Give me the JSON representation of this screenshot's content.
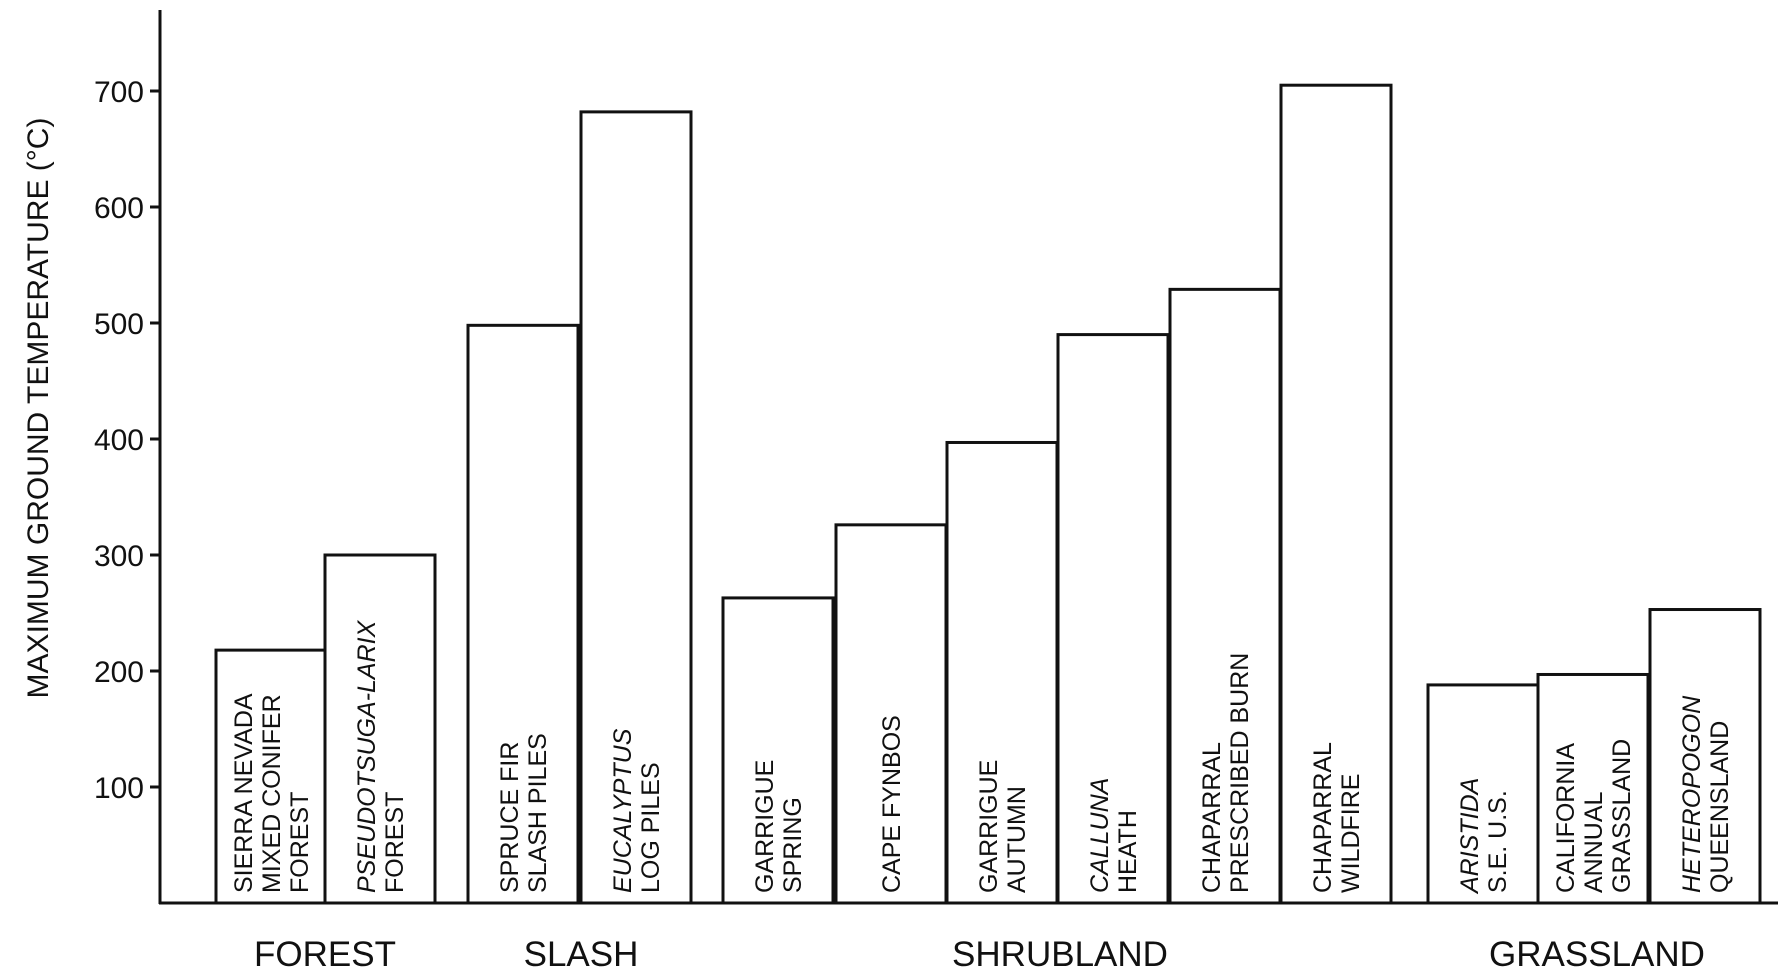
{
  "chart_data": {
    "type": "bar",
    "title": "",
    "xlabel": "",
    "ylabel": "MAXIMUM GROUND TEMPERATURE (°C)",
    "ylim": [
      0,
      760
    ],
    "yticks": [
      100,
      200,
      300,
      400,
      500,
      600,
      700
    ],
    "grid": false,
    "legend": "none",
    "colors": {
      "bar_fill": "#ffffff",
      "bar_stroke": "#111111",
      "text": "#111111"
    },
    "groups": [
      {
        "name": "FOREST",
        "bars": [
          {
            "label_lines": [
              [
                "SIERRA NEVADA",
                false
              ],
              [
                "MIXED CONIFER",
                false
              ],
              [
                "FOREST",
                false
              ]
            ],
            "value": 218
          },
          {
            "label_lines": [
              [
                "PSEUDOTSUGA-LARIX",
                true
              ],
              [
                "FOREST",
                false
              ]
            ],
            "value": 300
          }
        ]
      },
      {
        "name": "SLASH",
        "bars": [
          {
            "label_lines": [
              [
                "SPRUCE FIR",
                false
              ],
              [
                "SLASH PILES",
                false
              ]
            ],
            "value": 498
          },
          {
            "label_lines": [
              [
                "EUCALYPTUS",
                true
              ],
              [
                "LOG PILES",
                false
              ]
            ],
            "value": 682
          }
        ]
      },
      {
        "name": "SHRUBLAND",
        "bars": [
          {
            "label_lines": [
              [
                "GARRIGUE",
                false
              ],
              [
                "SPRING",
                false
              ]
            ],
            "value": 263
          },
          {
            "label_lines": [
              [
                "CAPE FYNBOS",
                false
              ]
            ],
            "value": 326
          },
          {
            "label_lines": [
              [
                "GARRIGUE",
                false
              ],
              [
                "AUTUMN",
                false
              ]
            ],
            "value": 397
          },
          {
            "label_lines": [
              [
                "CALLUNA",
                true
              ],
              [
                "HEATH",
                false
              ]
            ],
            "value": 490
          },
          {
            "label_lines": [
              [
                "CHAPARRAL",
                false
              ],
              [
                "PRESCRIBED BURN",
                false
              ]
            ],
            "value": 529
          },
          {
            "label_lines": [
              [
                "CHAPARRAL",
                false
              ],
              [
                "WILDFIRE",
                false
              ]
            ],
            "value": 705
          }
        ]
      },
      {
        "name": "GRASSLAND",
        "bars": [
          {
            "label_lines": [
              [
                "ARISTIDA",
                true
              ],
              [
                "S.E. U.S.",
                false
              ]
            ],
            "value": 188
          },
          {
            "label_lines": [
              [
                "CALIFORNIA",
                false
              ],
              [
                "ANNUAL",
                false
              ],
              [
                "GRASSLAND",
                false
              ]
            ],
            "value": 197
          },
          {
            "label_lines": [
              [
                "HETEROPOGON",
                true
              ],
              [
                "QUEENSLAND",
                false
              ]
            ],
            "value": 253
          }
        ]
      }
    ]
  }
}
